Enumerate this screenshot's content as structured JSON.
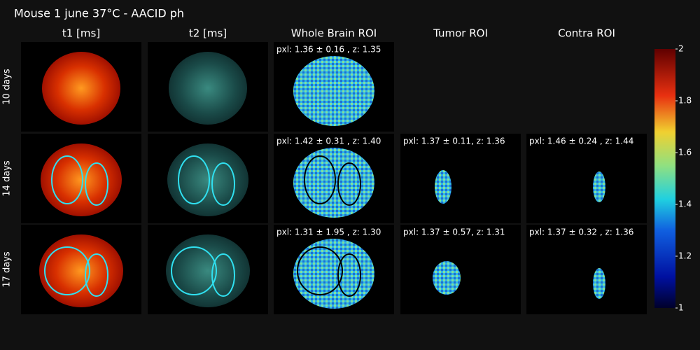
{
  "title": "Mouse 1 june 37°C - AACID ph",
  "columns": [
    "t1 [ms]",
    "t2 [ms]",
    "Whole Brain ROI",
    "Tumor ROI",
    "Contra ROI"
  ],
  "rows": [
    {
      "label": "10 days",
      "stats": [
        "pxl: 1.36 ± 0.16 , z: 1.35",
        null,
        null
      ]
    },
    {
      "label": "14 days",
      "stats": [
        "pxl: 1.42 ± 0.31 , z: 1.40",
        "pxl: 1.37 ± 0.11, z: 1.36",
        "pxl: 1.46 ± 0.24 , z: 1.44"
      ]
    },
    {
      "label": "17 days",
      "stats": [
        "pxl: 1.31 ± 1.95 , z: 1.30",
        "pxl: 1.37 ± 0.57, z: 1.31",
        "pxl: 1.37 ± 0.32 , z: 1.36"
      ]
    }
  ],
  "colorbar": {
    "range": [
      1,
      2
    ],
    "ticks": [
      1,
      1.2,
      1.4,
      1.6,
      1.8,
      2
    ]
  }
}
